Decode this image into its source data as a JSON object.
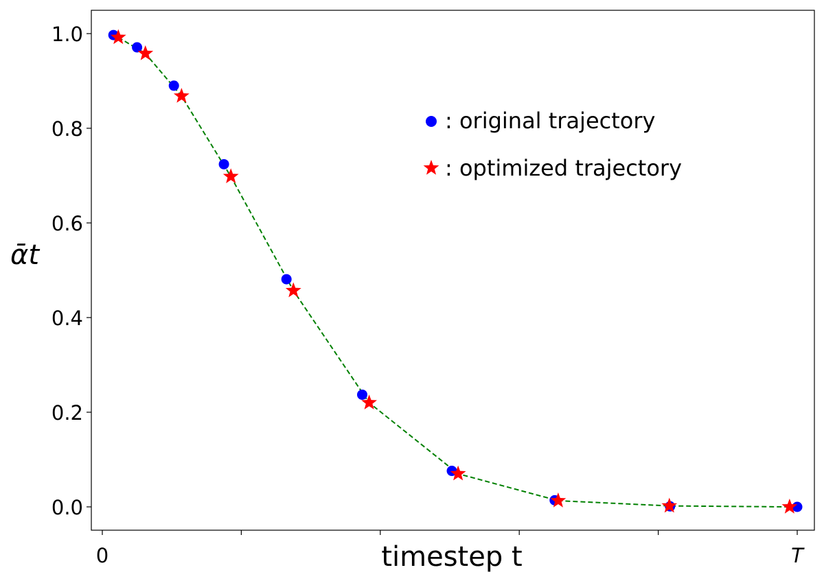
{
  "chart_data": {
    "type": "scatter",
    "xlabel": "timestep t",
    "ylabel": "ᾱt",
    "xlim": [
      0,
      1
    ],
    "ylim": [
      -0.05,
      1.05
    ],
    "x_tick_labels": [
      {
        "value": 0,
        "label": "0"
      },
      {
        "value": 1,
        "label": "T"
      }
    ],
    "x_minor_ticks": [
      0.2,
      0.4,
      0.6,
      0.8
    ],
    "y_ticks": [
      {
        "value": 0.0,
        "label": "0.0"
      },
      {
        "value": 0.2,
        "label": "0.2"
      },
      {
        "value": 0.4,
        "label": "0.4"
      },
      {
        "value": 0.6,
        "label": "0.6"
      },
      {
        "value": 0.8,
        "label": "0.8"
      },
      {
        "value": 1.0,
        "label": "1.0"
      }
    ],
    "grid": false,
    "legend_position": "top-right",
    "series": [
      {
        "name": ": original trajectory",
        "marker": "circle",
        "color": "#0000ff",
        "x": [
          0.016,
          0.05,
          0.103,
          0.175,
          0.265,
          0.374,
          0.503,
          0.651,
          0.817,
          1.0
        ],
        "y": [
          0.997,
          0.971,
          0.89,
          0.724,
          0.481,
          0.237,
          0.076,
          0.014,
          0.001,
          0.0
        ]
      },
      {
        "name": ": optimized trajectory",
        "marker": "star",
        "color": "#ff0000",
        "x": [
          0.023,
          0.062,
          0.114,
          0.185,
          0.275,
          0.384,
          0.512,
          0.656,
          0.816,
          0.989
        ],
        "y": [
          0.992,
          0.958,
          0.868,
          0.698,
          0.457,
          0.22,
          0.07,
          0.013,
          0.002,
          0.0
        ]
      }
    ],
    "line": {
      "style": "dashed",
      "color": "#008000",
      "follows": ": optimized trajectory"
    }
  }
}
